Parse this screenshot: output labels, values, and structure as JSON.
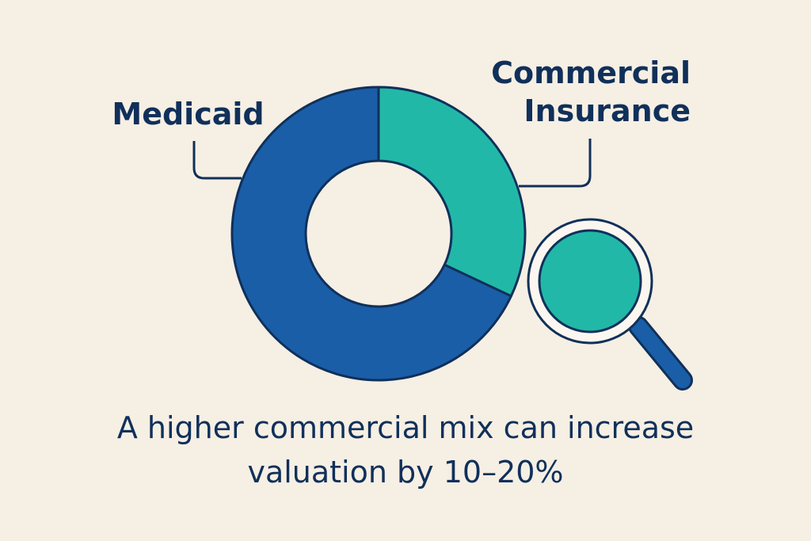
{
  "chart_data": {
    "type": "donut",
    "categories": [
      "Medicaid",
      "Commercial Insurance"
    ],
    "values": [
      68,
      32
    ],
    "colors": [
      "#1a5ea8",
      "#22b8a8"
    ],
    "caption": "A higher commercial mix can increase valuation by 10–20%"
  }
}
